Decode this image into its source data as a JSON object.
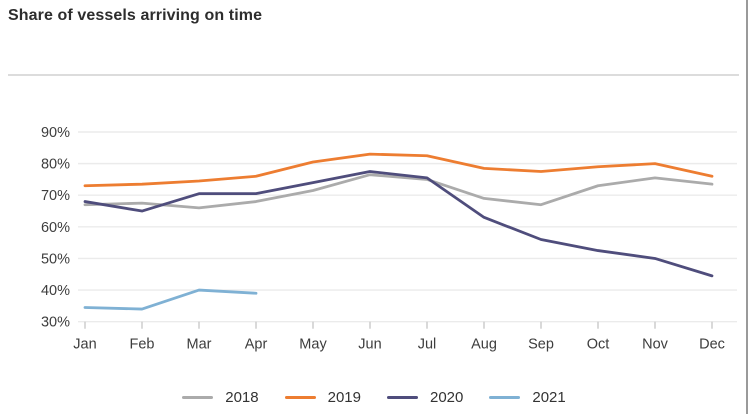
{
  "title": "Share of vessels arriving on time",
  "chart_data": {
    "type": "line",
    "title": "Share of vessels arriving on time",
    "categories": [
      "Jan",
      "Feb",
      "Mar",
      "Apr",
      "May",
      "Jun",
      "Jul",
      "Aug",
      "Sep",
      "Oct",
      "Nov",
      "Dec"
    ],
    "series": [
      {
        "name": "2018",
        "color": "#ababab",
        "values": [
          67,
          67.5,
          66,
          68,
          71.5,
          76.5,
          75,
          69,
          67,
          73,
          75.5,
          73.5
        ]
      },
      {
        "name": "2019",
        "color": "#ed7d31",
        "values": [
          73,
          73.5,
          74.5,
          76,
          80.5,
          83,
          82.5,
          78.5,
          77.5,
          79,
          80,
          76
        ]
      },
      {
        "name": "2020",
        "color": "#4f4d7c",
        "values": [
          68,
          65,
          70.5,
          70.5,
          74,
          77.5,
          75.5,
          63,
          56,
          52.5,
          50,
          44.5
        ]
      },
      {
        "name": "2021",
        "color": "#7fb1d4",
        "values": [
          34.5,
          34,
          40,
          39,
          null,
          null,
          null,
          null,
          null,
          null,
          null,
          null
        ]
      }
    ],
    "xlabel": "",
    "ylabel": "",
    "y_ticks": [
      "90%",
      "80%",
      "70%",
      "60%",
      "50%",
      "40%",
      "30%"
    ],
    "y_tick_values": [
      90,
      80,
      70,
      60,
      50,
      40,
      30
    ],
    "ylim": [
      30,
      95
    ],
    "grid": "horizontal-only",
    "legend_position": "bottom-center"
  },
  "style_colors": {
    "title_text": "#2d2d2d",
    "axis_text": "#3d3d3d",
    "gridline": "#ebebeb",
    "tick_mark": "#c9c9c9",
    "divider": "#dcdcdc",
    "right_edge_line": "#9a9a9a"
  }
}
